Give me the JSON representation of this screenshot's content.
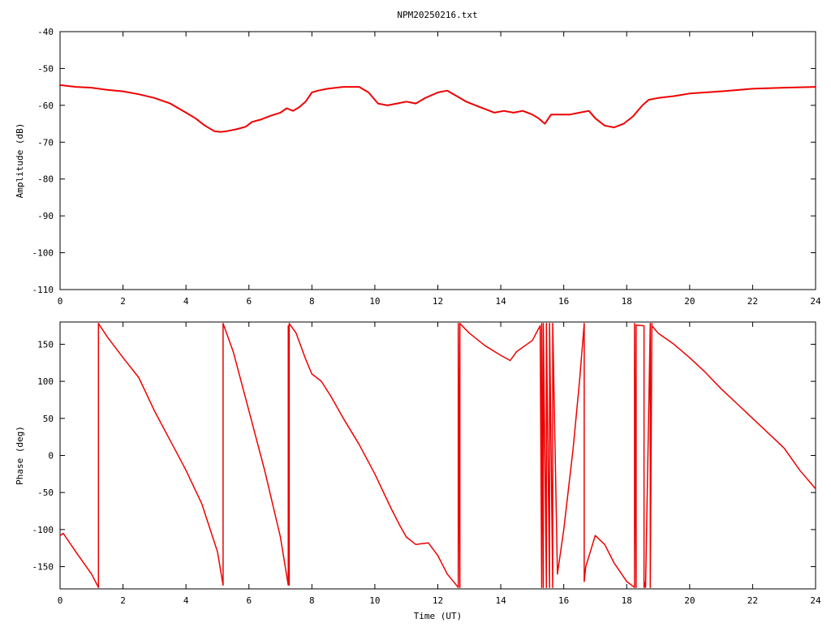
{
  "title": "NPM20250216.txt",
  "chart_data": [
    {
      "type": "line",
      "panel": "amplitude",
      "title": "NPM20250216.txt",
      "xlabel": "",
      "ylabel": "Amplitude (dB)",
      "xlim": [
        0,
        24
      ],
      "ylim": [
        -110,
        -40
      ],
      "xticks": [
        0,
        2,
        4,
        6,
        8,
        10,
        12,
        14,
        16,
        18,
        20,
        22,
        24
      ],
      "yticks": [
        -40,
        -50,
        -60,
        -70,
        -80,
        -90,
        -100,
        -110
      ],
      "grid": false,
      "line_color": "#ee0000",
      "series": [
        {
          "x": [
            0,
            0.5,
            1,
            1.5,
            2,
            2.5,
            3,
            3.5,
            4,
            4.3,
            4.6,
            4.9,
            5.1,
            5.3,
            5.6,
            5.9,
            6.1,
            6.4,
            6.7,
            7.0,
            7.2,
            7.4,
            7.6,
            7.8,
            8.0,
            8.2,
            8.5,
            9.0,
            9.5,
            9.8,
            10.1,
            10.4,
            10.7,
            11.0,
            11.3,
            11.6,
            12.0,
            12.3,
            12.6,
            12.9,
            13.2,
            13.5,
            13.8,
            14.1,
            14.4,
            14.7,
            15.0,
            15.2,
            15.4,
            15.6,
            15.9,
            16.2,
            16.5,
            16.8,
            17.0,
            17.3,
            17.6,
            17.9,
            18.2,
            18.5,
            18.7,
            19.0,
            19.5,
            20,
            21,
            22,
            23,
            24
          ],
          "y": [
            -54.5,
            -55.0,
            -55.2,
            -55.8,
            -56.2,
            -57.0,
            -58.0,
            -59.5,
            -62.0,
            -63.5,
            -65.5,
            -67.0,
            -67.2,
            -67.0,
            -66.5,
            -65.8,
            -64.5,
            -63.8,
            -62.8,
            -62.0,
            -60.8,
            -61.5,
            -60.5,
            -59.0,
            -56.5,
            -56.0,
            -55.5,
            -55.0,
            -55.0,
            -56.5,
            -59.5,
            -60.0,
            -59.5,
            -59.0,
            -59.5,
            -58.0,
            -56.5,
            -56.0,
            -57.5,
            -59.0,
            -60.0,
            -61.0,
            -62.0,
            -61.5,
            -62.0,
            -61.5,
            -62.5,
            -63.5,
            -65.0,
            -62.5,
            -62.5,
            -62.5,
            -62.0,
            -61.5,
            -63.5,
            -65.5,
            -66.0,
            -65.0,
            -63.0,
            -60.0,
            -58.5,
            -58.0,
            -57.5,
            -56.8,
            -56.2,
            -55.5,
            -55.2,
            -55.0
          ]
        }
      ]
    },
    {
      "type": "line",
      "panel": "phase",
      "title": "",
      "xlabel": "Time (UT)",
      "ylabel": "Phase (deg)",
      "xlim": [
        0,
        24
      ],
      "ylim": [
        -180,
        180
      ],
      "xticks": [
        0,
        2,
        4,
        6,
        8,
        10,
        12,
        14,
        16,
        18,
        20,
        22,
        24
      ],
      "yticks": [
        150,
        100,
        50,
        0,
        -50,
        -100,
        -150
      ],
      "grid": false,
      "line_color": "#ee0000",
      "series": [
        {
          "x": [
            0,
            0.1,
            0.5,
            1.0,
            1.22,
            1.22,
            1.5,
            2.0,
            2.5,
            3.0,
            3.5,
            4.0,
            4.5,
            5.0,
            5.18,
            5.18,
            5.5,
            6.0,
            6.5,
            7.0,
            7.25,
            7.25,
            7.28,
            7.28,
            7.5,
            7.8,
            8.0,
            8.3,
            8.6,
            9.0,
            9.5,
            10.0,
            10.5,
            10.8,
            11.0,
            11.3,
            11.7,
            12.0,
            12.3,
            12.65,
            12.65,
            12.7,
            12.7,
            13.0,
            13.5,
            14.0,
            14.3,
            14.5,
            15.0,
            15.25,
            15.3,
            15.3,
            15.35,
            15.35,
            15.45,
            15.45,
            15.55,
            15.55,
            15.65,
            15.65,
            15.8,
            16.0,
            16.3,
            16.5,
            16.65,
            16.65,
            16.7,
            17.0,
            17.3,
            17.6,
            18.0,
            18.25,
            18.25,
            18.3,
            18.3,
            18.55,
            18.55,
            18.6,
            18.6,
            18.75,
            18.75,
            18.8,
            18.8,
            19.0,
            19.5,
            20.0,
            20.5,
            21.0,
            21.5,
            22.0,
            22.5,
            23.0,
            23.5,
            24.0
          ],
          "y": [
            -108,
            -105,
            -130,
            -160,
            -178,
            178,
            160,
            132,
            105,
            60,
            20,
            -20,
            -65,
            -130,
            -175,
            178,
            140,
            60,
            -20,
            -110,
            -175,
            175,
            -175,
            178,
            165,
            130,
            110,
            100,
            80,
            50,
            15,
            -25,
            -70,
            -95,
            -110,
            -120,
            -118,
            -135,
            -160,
            -178,
            178,
            -178,
            178,
            165,
            148,
            135,
            128,
            140,
            155,
            175,
            -178,
            178,
            -178,
            178,
            -178,
            178,
            -178,
            178,
            -178,
            178,
            -160,
            -100,
            10,
            100,
            178,
            -170,
            -150,
            -108,
            -120,
            -145,
            -170,
            -178,
            178,
            -178,
            176,
            175,
            -178,
            -170,
            -178,
            178,
            -178,
            178,
            175,
            165,
            150,
            132,
            112,
            90,
            70,
            50,
            30,
            10,
            -20,
            -45
          ]
        }
      ]
    }
  ]
}
